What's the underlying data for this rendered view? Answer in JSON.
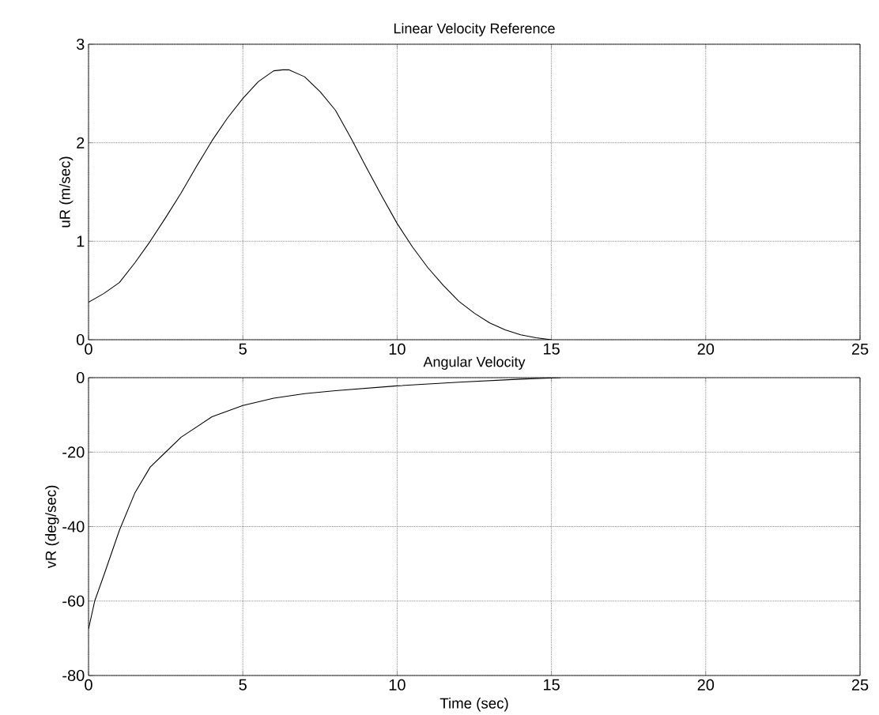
{
  "chart_data": [
    {
      "type": "line",
      "title": "Linear Velocity Reference",
      "ylabel": "uR (m/sec)",
      "x": [
        0,
        0.5,
        1,
        1.5,
        2,
        2.5,
        3,
        3.5,
        4,
        4.5,
        5,
        5.5,
        6,
        6.3,
        6.5,
        7,
        7.5,
        8,
        8.5,
        9,
        9.5,
        10,
        10.5,
        11,
        11.5,
        12,
        12.5,
        13,
        13.5,
        14,
        14.5,
        15
      ],
      "series": [
        {
          "color": "#000000",
          "values": [
            0.38,
            0.47,
            0.58,
            0.78,
            1.0,
            1.24,
            1.49,
            1.76,
            2.02,
            2.25,
            2.45,
            2.62,
            2.73,
            2.74,
            2.74,
            2.67,
            2.52,
            2.33,
            2.05,
            1.75,
            1.46,
            1.18,
            0.94,
            0.73,
            0.55,
            0.39,
            0.27,
            0.17,
            0.1,
            0.05,
            0.02,
            0
          ]
        }
      ],
      "xlim": [
        0,
        25
      ],
      "xticks": [
        0,
        5,
        10,
        15,
        20,
        25
      ],
      "ylim": [
        0,
        3
      ],
      "yticks": [
        0,
        1,
        2,
        3
      ],
      "grid": true
    },
    {
      "type": "line",
      "title": "Angular Velocity",
      "ylabel": "vR (deg/sec)",
      "xlabel": "Time (sec)",
      "x": [
        0,
        0.2,
        0.5,
        1,
        1.5,
        2,
        2.5,
        3,
        4,
        5,
        6,
        7,
        8,
        10,
        12,
        14,
        15.3
      ],
      "series": [
        {
          "color": "#000000",
          "values": [
            -67.5,
            -60,
            -53,
            -41,
            -31,
            -24,
            -20,
            -16,
            -10.5,
            -7.5,
            -5.5,
            -4.3,
            -3.5,
            -2.2,
            -1.2,
            -0.4,
            0
          ]
        }
      ],
      "xlim": [
        0,
        25
      ],
      "xticks": [
        0,
        5,
        10,
        15,
        20,
        25
      ],
      "ylim": [
        -80,
        0
      ],
      "yticks": [
        -80,
        -60,
        -40,
        -20,
        0
      ],
      "grid": true
    }
  ]
}
